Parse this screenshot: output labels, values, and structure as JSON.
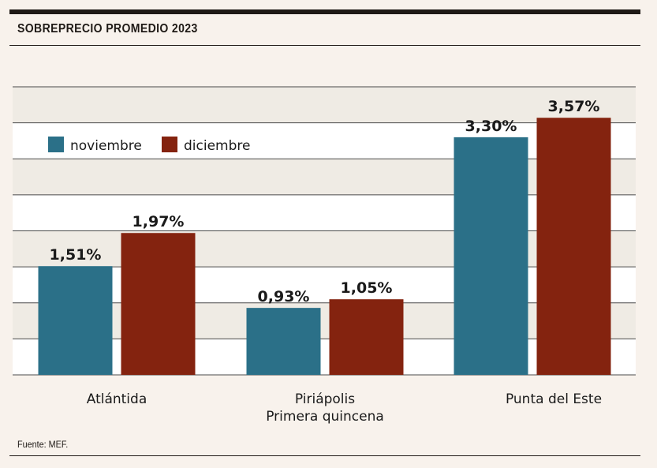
{
  "header": {
    "title": "SOBREPRECIO PROMEDIO 2023"
  },
  "footer": {
    "source": "Fuente: MEF."
  },
  "colors": {
    "background": "#f8f2ec",
    "band_light": "#efebe4",
    "band_white": "#ffffff",
    "gridline": "#4a4a4a",
    "noviembre": "#2b7088",
    "diciembre": "#84230f"
  },
  "chart_data": {
    "type": "bar",
    "title": "SOBREPRECIO PROMEDIO 2023",
    "xlabel": "",
    "ylabel": "",
    "ylim": [
      0,
      4.0
    ],
    "grid": true,
    "legend_position": "top-left",
    "categories": [
      [
        "Atlántida"
      ],
      [
        "Piriápolis",
        "Primera quincena"
      ],
      [
        "Punta del Este"
      ]
    ],
    "series": [
      {
        "name": "noviembre",
        "color": "#2b7088",
        "values": [
          1.51,
          0.93,
          3.3
        ],
        "labels": [
          "1,51%",
          "0,93%",
          "3,30%"
        ]
      },
      {
        "name": "diciembre",
        "color": "#84230f",
        "values": [
          1.97,
          1.05,
          3.57
        ],
        "labels": [
          "1,97%",
          "1,05%",
          "3,57%"
        ]
      }
    ]
  }
}
